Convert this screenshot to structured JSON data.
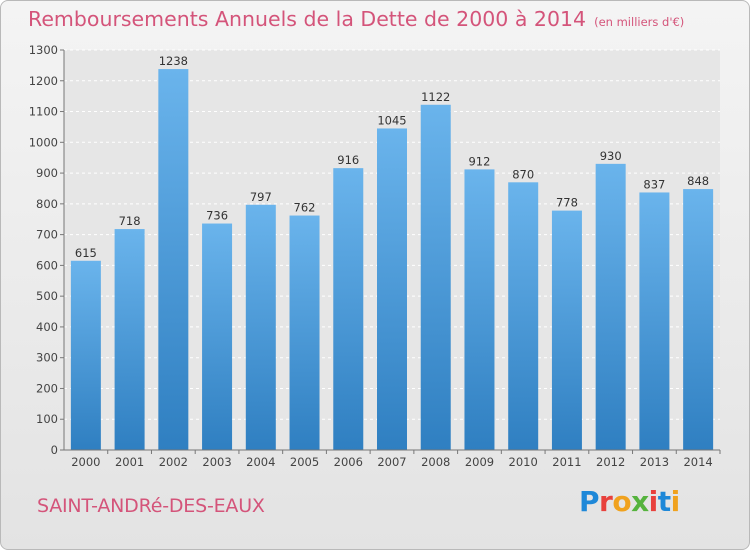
{
  "header": {
    "title": "Remboursements Annuels de la Dette de 2000 à 2014",
    "subtitle": "(en milliers d'€)"
  },
  "footer": {
    "commune": "SAINT-ANDRé-DES-EAUX",
    "logo_text": "Proxiti",
    "logo_colors": [
      "#1e88d8",
      "#e8413c",
      "#f0a21e",
      "#55b33d",
      "#e8413c",
      "#1e88d8",
      "#f0a21e"
    ]
  },
  "chart_data": {
    "type": "bar",
    "title": "Remboursements Annuels de la Dette de 2000 à 2014",
    "subtitle": "(en milliers d'€)",
    "categories": [
      "2000",
      "2001",
      "2002",
      "2003",
      "2004",
      "2005",
      "2006",
      "2007",
      "2008",
      "2009",
      "2010",
      "2011",
      "2012",
      "2013",
      "2014"
    ],
    "values": [
      615,
      718,
      1238,
      736,
      797,
      762,
      916,
      1045,
      1122,
      912,
      870,
      778,
      930,
      837,
      848
    ],
    "ylim": [
      0,
      1300
    ],
    "yticks": [
      0,
      100,
      200,
      300,
      400,
      500,
      600,
      700,
      800,
      900,
      1000,
      1100,
      1200,
      1300
    ],
    "grid": true,
    "bar_color_light": "#6ab4ec",
    "bar_color_dark": "#2f7fc1"
  }
}
